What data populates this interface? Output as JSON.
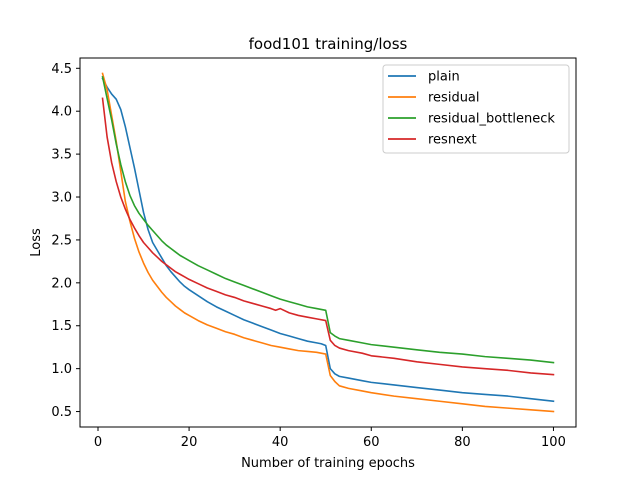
{
  "chart_data": {
    "type": "line",
    "title": "food101 training/loss",
    "xlabel": "Number of training epochs",
    "ylabel": "Loss",
    "xlim": [
      -3.95,
      104.95
    ],
    "ylim": [
      0.32,
      4.62
    ],
    "xticks": [
      0,
      20,
      40,
      60,
      80,
      100
    ],
    "yticks": [
      0.5,
      1.0,
      1.5,
      2.0,
      2.5,
      3.0,
      3.5,
      4.0,
      4.5
    ],
    "grid": false,
    "legend_position": "top-right",
    "series": [
      {
        "name": "plain",
        "color": "#1f77b4",
        "points": [
          [
            1,
            4.38
          ],
          [
            2,
            4.28
          ],
          [
            3,
            4.2
          ],
          [
            4,
            4.14
          ],
          [
            5,
            4.02
          ],
          [
            6,
            3.82
          ],
          [
            7,
            3.58
          ],
          [
            8,
            3.34
          ],
          [
            9,
            3.08
          ],
          [
            10,
            2.82
          ],
          [
            11,
            2.62
          ],
          [
            12,
            2.47
          ],
          [
            13,
            2.38
          ],
          [
            14,
            2.29
          ],
          [
            15,
            2.2
          ],
          [
            16,
            2.13
          ],
          [
            17,
            2.07
          ],
          [
            18,
            2.01
          ],
          [
            19,
            1.96
          ],
          [
            20,
            1.92
          ],
          [
            22,
            1.85
          ],
          [
            24,
            1.78
          ],
          [
            26,
            1.72
          ],
          [
            28,
            1.67
          ],
          [
            30,
            1.62
          ],
          [
            32,
            1.57
          ],
          [
            34,
            1.53
          ],
          [
            36,
            1.49
          ],
          [
            38,
            1.45
          ],
          [
            40,
            1.41
          ],
          [
            42,
            1.38
          ],
          [
            44,
            1.35
          ],
          [
            46,
            1.32
          ],
          [
            48,
            1.3
          ],
          [
            49,
            1.29
          ],
          [
            50,
            1.27
          ],
          [
            51,
            1.0
          ],
          [
            52,
            0.94
          ],
          [
            53,
            0.91
          ],
          [
            55,
            0.89
          ],
          [
            58,
            0.86
          ],
          [
            60,
            0.84
          ],
          [
            65,
            0.81
          ],
          [
            70,
            0.78
          ],
          [
            75,
            0.75
          ],
          [
            80,
            0.72
          ],
          [
            85,
            0.7
          ],
          [
            90,
            0.68
          ],
          [
            95,
            0.65
          ],
          [
            100,
            0.62
          ]
        ]
      },
      {
        "name": "residual",
        "color": "#ff7f0e",
        "points": [
          [
            1,
            4.44
          ],
          [
            2,
            4.25
          ],
          [
            3,
            3.95
          ],
          [
            4,
            3.65
          ],
          [
            5,
            3.3
          ],
          [
            6,
            2.95
          ],
          [
            7,
            2.72
          ],
          [
            8,
            2.52
          ],
          [
            9,
            2.36
          ],
          [
            10,
            2.23
          ],
          [
            11,
            2.12
          ],
          [
            12,
            2.03
          ],
          [
            13,
            1.96
          ],
          [
            14,
            1.89
          ],
          [
            15,
            1.83
          ],
          [
            16,
            1.78
          ],
          [
            17,
            1.73
          ],
          [
            18,
            1.69
          ],
          [
            19,
            1.65
          ],
          [
            20,
            1.62
          ],
          [
            22,
            1.56
          ],
          [
            24,
            1.51
          ],
          [
            26,
            1.47
          ],
          [
            28,
            1.43
          ],
          [
            30,
            1.4
          ],
          [
            32,
            1.36
          ],
          [
            34,
            1.33
          ],
          [
            36,
            1.3
          ],
          [
            38,
            1.27
          ],
          [
            40,
            1.25
          ],
          [
            42,
            1.23
          ],
          [
            44,
            1.21
          ],
          [
            46,
            1.2
          ],
          [
            48,
            1.19
          ],
          [
            50,
            1.17
          ],
          [
            51,
            0.92
          ],
          [
            52,
            0.85
          ],
          [
            53,
            0.8
          ],
          [
            55,
            0.77
          ],
          [
            58,
            0.74
          ],
          [
            60,
            0.72
          ],
          [
            65,
            0.68
          ],
          [
            70,
            0.65
          ],
          [
            75,
            0.62
          ],
          [
            80,
            0.59
          ],
          [
            85,
            0.56
          ],
          [
            90,
            0.54
          ],
          [
            95,
            0.52
          ],
          [
            100,
            0.5
          ]
        ]
      },
      {
        "name": "residual_bottleneck",
        "color": "#2ca02c",
        "points": [
          [
            1,
            4.4
          ],
          [
            2,
            4.15
          ],
          [
            3,
            3.9
          ],
          [
            4,
            3.62
          ],
          [
            5,
            3.38
          ],
          [
            6,
            3.18
          ],
          [
            7,
            3.02
          ],
          [
            8,
            2.9
          ],
          [
            9,
            2.81
          ],
          [
            10,
            2.74
          ],
          [
            11,
            2.67
          ],
          [
            12,
            2.61
          ],
          [
            13,
            2.55
          ],
          [
            14,
            2.49
          ],
          [
            15,
            2.44
          ],
          [
            16,
            2.4
          ],
          [
            17,
            2.36
          ],
          [
            18,
            2.32
          ],
          [
            19,
            2.29
          ],
          [
            20,
            2.26
          ],
          [
            22,
            2.2
          ],
          [
            24,
            2.15
          ],
          [
            26,
            2.1
          ],
          [
            28,
            2.05
          ],
          [
            30,
            2.01
          ],
          [
            32,
            1.97
          ],
          [
            34,
            1.93
          ],
          [
            36,
            1.89
          ],
          [
            38,
            1.85
          ],
          [
            40,
            1.81
          ],
          [
            42,
            1.78
          ],
          [
            44,
            1.75
          ],
          [
            46,
            1.72
          ],
          [
            48,
            1.7
          ],
          [
            50,
            1.68
          ],
          [
            51,
            1.42
          ],
          [
            52,
            1.38
          ],
          [
            53,
            1.35
          ],
          [
            55,
            1.33
          ],
          [
            58,
            1.3
          ],
          [
            60,
            1.28
          ],
          [
            65,
            1.25
          ],
          [
            70,
            1.22
          ],
          [
            75,
            1.19
          ],
          [
            80,
            1.17
          ],
          [
            85,
            1.14
          ],
          [
            90,
            1.12
          ],
          [
            95,
            1.1
          ],
          [
            100,
            1.07
          ]
        ]
      },
      {
        "name": "resnext",
        "color": "#d62728",
        "points": [
          [
            1,
            4.15
          ],
          [
            2,
            3.7
          ],
          [
            3,
            3.4
          ],
          [
            4,
            3.18
          ],
          [
            5,
            3.0
          ],
          [
            6,
            2.86
          ],
          [
            7,
            2.74
          ],
          [
            8,
            2.64
          ],
          [
            9,
            2.55
          ],
          [
            10,
            2.47
          ],
          [
            11,
            2.41
          ],
          [
            12,
            2.35
          ],
          [
            13,
            2.3
          ],
          [
            14,
            2.25
          ],
          [
            15,
            2.21
          ],
          [
            16,
            2.17
          ],
          [
            17,
            2.13
          ],
          [
            18,
            2.1
          ],
          [
            19,
            2.07
          ],
          [
            20,
            2.04
          ],
          [
            22,
            1.99
          ],
          [
            24,
            1.94
          ],
          [
            26,
            1.9
          ],
          [
            28,
            1.86
          ],
          [
            30,
            1.83
          ],
          [
            32,
            1.79
          ],
          [
            34,
            1.76
          ],
          [
            36,
            1.73
          ],
          [
            38,
            1.7
          ],
          [
            39,
            1.68
          ],
          [
            40,
            1.7
          ],
          [
            42,
            1.65
          ],
          [
            44,
            1.62
          ],
          [
            46,
            1.6
          ],
          [
            48,
            1.58
          ],
          [
            50,
            1.56
          ],
          [
            51,
            1.33
          ],
          [
            52,
            1.27
          ],
          [
            53,
            1.24
          ],
          [
            55,
            1.21
          ],
          [
            58,
            1.18
          ],
          [
            60,
            1.15
          ],
          [
            65,
            1.12
          ],
          [
            70,
            1.08
          ],
          [
            75,
            1.05
          ],
          [
            80,
            1.02
          ],
          [
            85,
            1.0
          ],
          [
            90,
            0.98
          ],
          [
            95,
            0.95
          ],
          [
            100,
            0.93
          ]
        ]
      }
    ]
  }
}
